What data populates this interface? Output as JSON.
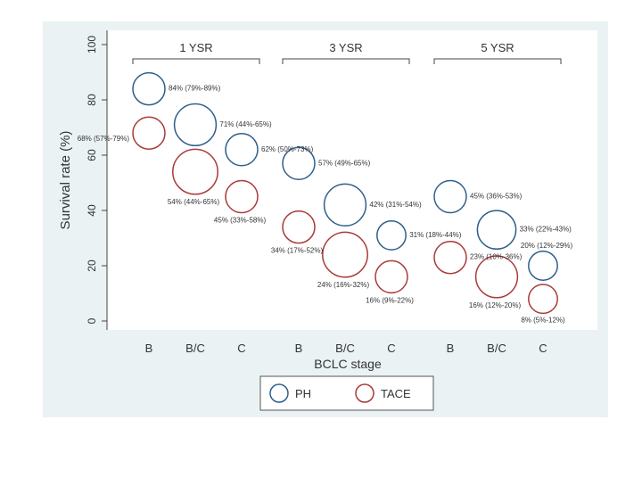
{
  "chart_data": {
    "type": "scatter",
    "subtype": "bubble",
    "xlabel": "BCLC stage",
    "ylabel": "Survival rate (%)",
    "ylim": [
      0,
      100
    ],
    "yticks": [
      "0",
      "20",
      "40",
      "60",
      "80",
      "100"
    ],
    "grid": false,
    "legend_placement": "bottom-center",
    "groups": [
      {
        "label": "1 YSR",
        "categories": [
          "B",
          "B/C",
          "C"
        ]
      },
      {
        "label": "3 YSR",
        "categories": [
          "B",
          "B/C",
          "C"
        ]
      },
      {
        "label": "5 YSR",
        "categories": [
          "B",
          "B/C",
          "C"
        ]
      }
    ],
    "series": [
      {
        "name": "PH",
        "color": "#2f5f8a",
        "points": [
          {
            "group": 0,
            "category": "B",
            "value": 84,
            "label": "84% (79%-89%)",
            "size": 1.0
          },
          {
            "group": 0,
            "category": "B/C",
            "value": 71,
            "label": "71% (44%-65%)",
            "size": 1.3
          },
          {
            "group": 0,
            "category": "C",
            "value": 62,
            "label": "62% (50%-73%)",
            "size": 1.0
          },
          {
            "group": 1,
            "category": "B",
            "value": 57,
            "label": "57% (49%-65%)",
            "size": 1.0
          },
          {
            "group": 1,
            "category": "B/C",
            "value": 42,
            "label": "42% (31%-54%)",
            "size": 1.3
          },
          {
            "group": 1,
            "category": "C",
            "value": 31,
            "label": "31% (18%-44%)",
            "size": 0.9
          },
          {
            "group": 2,
            "category": "B",
            "value": 45,
            "label": "45% (36%-53%)",
            "size": 1.0
          },
          {
            "group": 2,
            "category": "B/C",
            "value": 33,
            "label": "33% (22%-43%)",
            "size": 1.2
          },
          {
            "group": 2,
            "category": "C",
            "value": 20,
            "label": "20% (12%-29%)",
            "size": 0.9
          }
        ]
      },
      {
        "name": "TACE",
        "color": "#a93a3a",
        "points": [
          {
            "group": 0,
            "category": "B",
            "value": 68,
            "label": "68% (57%-79%)",
            "size": 1.0
          },
          {
            "group": 0,
            "category": "B/C",
            "value": 54,
            "label": "54% (44%-65%)",
            "size": 1.4
          },
          {
            "group": 0,
            "category": "C",
            "value": 45,
            "label": "45% (33%-58%)",
            "size": 1.0
          },
          {
            "group": 1,
            "category": "B",
            "value": 34,
            "label": "34% (17%-52%)",
            "size": 1.0
          },
          {
            "group": 1,
            "category": "B/C",
            "value": 24,
            "label": "24% (16%-32%)",
            "size": 1.4
          },
          {
            "group": 1,
            "category": "C",
            "value": 16,
            "label": "16% (9%-22%)",
            "size": 1.0
          },
          {
            "group": 2,
            "category": "B",
            "value": 23,
            "label": "23% (10%-36%)",
            "size": 1.0
          },
          {
            "group": 2,
            "category": "B/C",
            "value": 16,
            "label": "16% (12%-20%)",
            "size": 1.3
          },
          {
            "group": 2,
            "category": "C",
            "value": 8,
            "label": "8% (5%-12%)",
            "size": 0.9
          }
        ]
      }
    ]
  }
}
